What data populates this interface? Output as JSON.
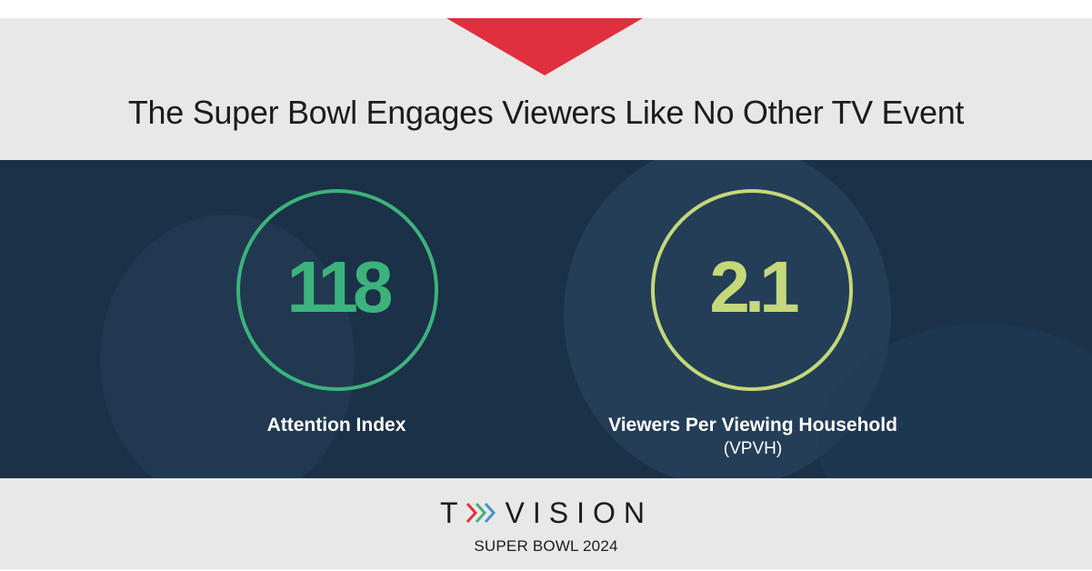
{
  "headline": "The Super Bowl Engages Viewers Like No Other TV Event",
  "stats": [
    {
      "value": "118",
      "label": "Attention Index",
      "sublabel": ""
    },
    {
      "value": "2.1",
      "label": "Viewers Per Viewing Household",
      "sublabel": "(VPVH)"
    }
  ],
  "logo": {
    "letter_t": "T",
    "letters_rest": "VISION",
    "chevron_colors": [
      "#e0303f",
      "#3db27c",
      "#4a90c8"
    ]
  },
  "subtitle": "SUPER BOWL 2024",
  "colors": {
    "accent_red": "#e0303f",
    "attention_green": "#3db27c",
    "vpvh_lime": "#c5d87a",
    "photo_overlay": "#1b3147",
    "band_gray": "#e8e8e8"
  }
}
